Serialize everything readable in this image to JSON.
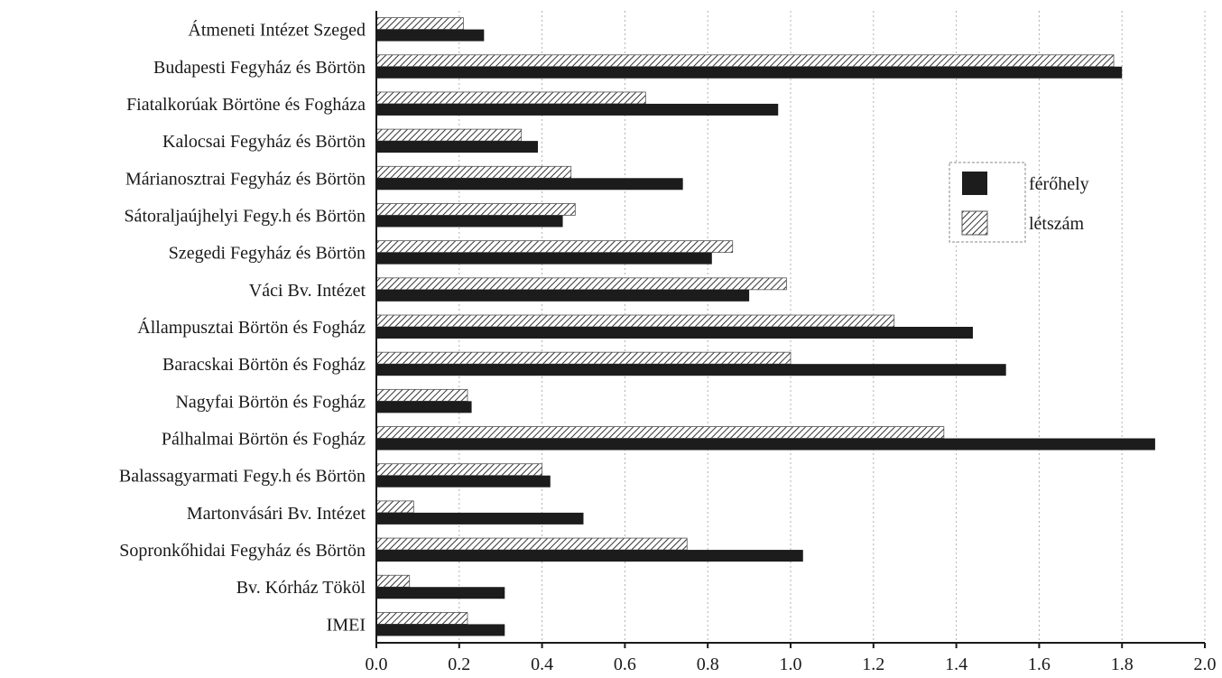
{
  "chart_data": {
    "type": "bar",
    "orientation": "horizontal",
    "categories": [
      "Átmeneti Intézet Szeged",
      "Budapesti Fegyház és Börtön",
      "Fiatalkorúak Börtöne és Fogháza",
      "Kalocsai Fegyház és Börtön",
      "Márianosztrai Fegyház és Börtön",
      "Sátoraljaújhelyi Fegy.h és Börtön",
      "Szegedi Fegyház és Börtön",
      "Váci Bv. Intézet",
      "Állampusztai Börtön és Fogház",
      "Baracskai Börtön és Fogház",
      "Nagyfai Börtön és Fogház",
      "Pálhalmai Börtön és Fogház",
      "Balassagyarmati Fegy.h és Börtön",
      "Martonvásári Bv. Intézet",
      "Sopronkőhidai Fegyház és Börtön",
      "Bv. Kórház Tököl",
      "IMEI"
    ],
    "series": [
      {
        "name": "létszám",
        "pattern": "hatched",
        "values": [
          0.21,
          1.78,
          0.65,
          0.35,
          0.47,
          0.48,
          0.86,
          0.99,
          1.25,
          1.0,
          0.22,
          1.37,
          0.4,
          0.09,
          0.75,
          0.08,
          0.22
        ]
      },
      {
        "name": "férőhely",
        "pattern": "solid",
        "color": "#1c1c1c",
        "values": [
          0.26,
          1.8,
          0.97,
          0.39,
          0.74,
          0.45,
          0.81,
          0.9,
          1.44,
          1.52,
          0.23,
          1.88,
          0.42,
          0.5,
          1.03,
          0.31,
          0.31
        ]
      }
    ],
    "xlim": [
      0.0,
      2.0
    ],
    "x_ticks": [
      "0.0",
      "0.2",
      "0.4",
      "0.6",
      "0.8",
      "1.0",
      "1.2",
      "1.4",
      "1.6",
      "1.8",
      "2.0"
    ],
    "grid": "vertical dotted",
    "legend": {
      "placement": "right",
      "entries": [
        "férőhely",
        "létszám"
      ]
    },
    "title": "",
    "xlabel": "",
    "ylabel": ""
  }
}
